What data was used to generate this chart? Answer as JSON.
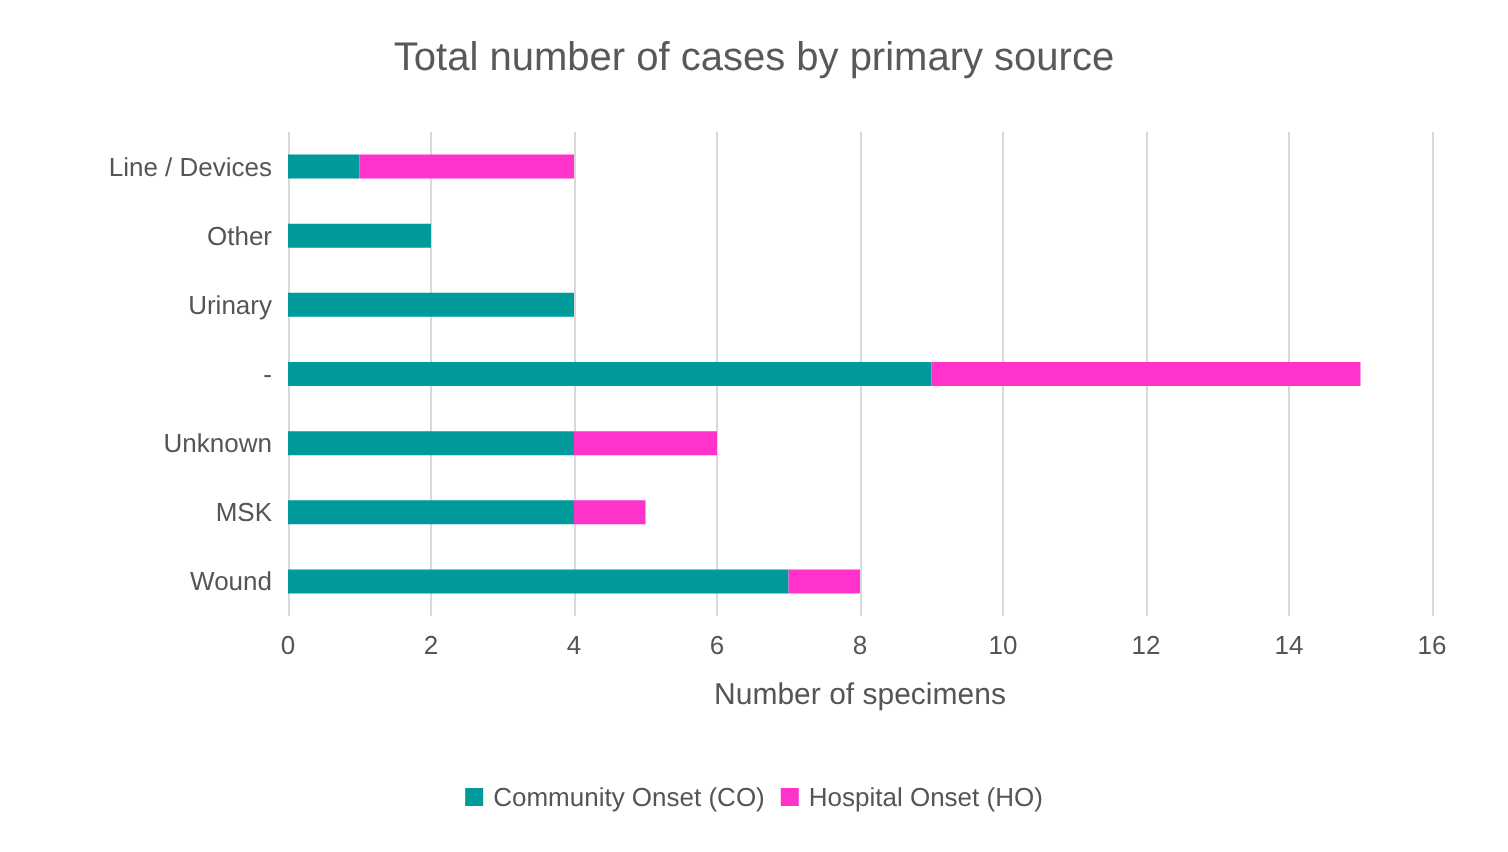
{
  "chart_data": {
    "type": "bar",
    "title": "Total number of cases by primary source",
    "xlabel": "Number of specimens",
    "orientation": "horizontal",
    "stacked": true,
    "categories": [
      "Line / Devices",
      "Other",
      "Urinary",
      "-",
      "Unknown",
      "MSK",
      "Wound"
    ],
    "series": [
      {
        "name": "Community Onset (CO)",
        "color": "#009a9a",
        "values": [
          1,
          2,
          4,
          9,
          4,
          4,
          7
        ]
      },
      {
        "name": "Hospital Onset (HO)",
        "color": "#ff33cc",
        "values": [
          3,
          0,
          0,
          6,
          2,
          1,
          1
        ]
      }
    ],
    "xlim": [
      0,
      16
    ],
    "xticks": [
      0,
      2,
      4,
      6,
      8,
      10,
      12,
      14,
      16
    ],
    "grid": "x",
    "legend": "bottom"
  }
}
